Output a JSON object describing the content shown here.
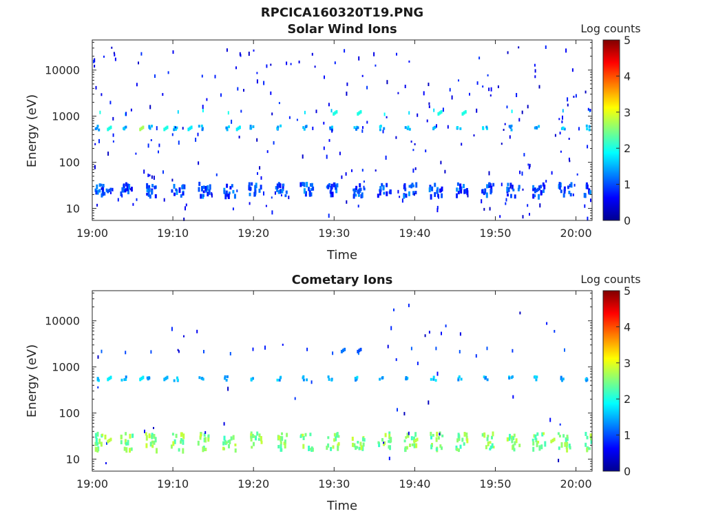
{
  "figure": {
    "title": "RPCICA160320T19.PNG"
  },
  "chart_data": [
    {
      "type": "heatmap",
      "title": "Solar Wind Ions",
      "xlabel": "Time",
      "ylabel": "Energy (eV)",
      "y_scale": "log",
      "x_range": [
        "19:00",
        "20:02"
      ],
      "y_range": [
        5.5,
        45000
      ],
      "x_ticks": [
        "19:00",
        "19:10",
        "19:20",
        "19:30",
        "19:40",
        "19:50",
        "20:00"
      ],
      "y_ticks": [
        "10",
        "100",
        "1000",
        "10000"
      ],
      "colorbar": {
        "label": "Log counts",
        "ticks": [
          "0",
          "1",
          "2",
          "3",
          "4",
          "5"
        ],
        "range": [
          0,
          5
        ],
        "colormap": "jet"
      },
      "repeating_features": {
        "period_minutes": 3.2,
        "band_energy_eV": [
          20,
          38
        ],
        "band_level": 1.0,
        "upper_band_energy_eV": 600,
        "upper_band_level": 1.5,
        "alpha_band_energy_eV": 1300,
        "alpha_band_level": 1.8
      },
      "sample_points": [
        {
          "t": "19:02",
          "e": 600,
          "v": 2.0
        },
        {
          "t": "19:06",
          "e": 600,
          "v": 2.7
        },
        {
          "t": "19:09",
          "e": 600,
          "v": 2.0
        },
        {
          "t": "19:12",
          "e": 600,
          "v": 1.8
        },
        {
          "t": "19:18",
          "e": 600,
          "v": 1.8
        },
        {
          "t": "19:30",
          "e": 1300,
          "v": 2.0
        },
        {
          "t": "19:33",
          "e": 1300,
          "v": 2.0
        },
        {
          "t": "19:43",
          "e": 1300,
          "v": 2.0
        },
        {
          "t": "19:46",
          "e": 1300,
          "v": 2.0
        },
        {
          "t": "19:02",
          "e": 27,
          "v": 1.0
        },
        {
          "t": "19:33",
          "e": 27,
          "v": 1.0
        },
        {
          "t": "19:55",
          "e": 27,
          "v": 1.0
        }
      ]
    },
    {
      "type": "heatmap",
      "title": "Cometary Ions",
      "xlabel": "Time",
      "ylabel": "Energy (eV)",
      "y_scale": "log",
      "x_range": [
        "19:00",
        "20:02"
      ],
      "y_range": [
        5.5,
        45000
      ],
      "x_ticks": [
        "19:00",
        "19:10",
        "19:20",
        "19:30",
        "19:40",
        "19:50",
        "20:00"
      ],
      "y_ticks": [
        "10",
        "100",
        "1000",
        "10000"
      ],
      "colorbar": {
        "label": "Log counts",
        "ticks": [
          "0",
          "1",
          "2",
          "3",
          "4",
          "5"
        ],
        "range": [
          0,
          5
        ],
        "colormap": "jet"
      },
      "repeating_features": {
        "period_minutes": 3.2,
        "band_energy_eV": [
          17,
          40
        ],
        "band_level": 2.5,
        "upper_band_energy_eV": 600,
        "upper_band_level": 1.5,
        "alpha_band_energy_eV": 2400,
        "alpha_band_level": 1.0
      },
      "sample_points": [
        {
          "t": "19:02",
          "e": 620,
          "v": 1.8
        },
        {
          "t": "19:06",
          "e": 620,
          "v": 1.8
        },
        {
          "t": "19:09",
          "e": 620,
          "v": 1.5
        },
        {
          "t": "19:31",
          "e": 2500,
          "v": 1.2
        },
        {
          "t": "19:33",
          "e": 2500,
          "v": 1.0
        },
        {
          "t": "19:02",
          "e": 28,
          "v": 2.8
        },
        {
          "t": "19:40",
          "e": 28,
          "v": 2.8
        },
        {
          "t": "19:57",
          "e": 28,
          "v": 2.8
        }
      ]
    }
  ]
}
